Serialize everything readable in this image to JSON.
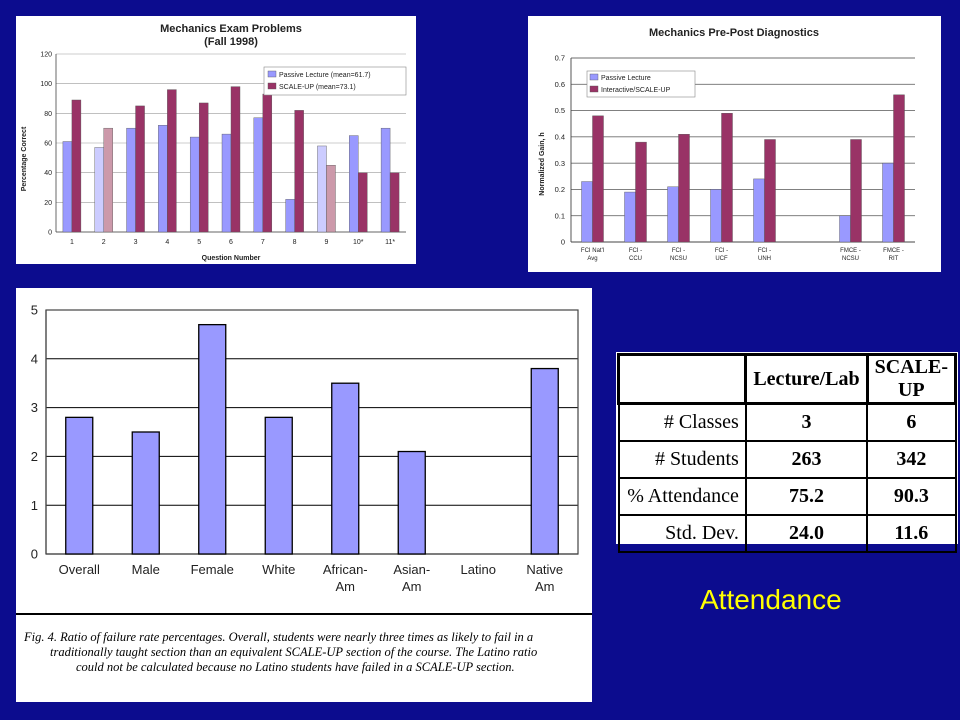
{
  "chart_data": [
    {
      "type": "bar",
      "title": "Mechanics Exam Problems",
      "subtitle": "(Fall 1998)",
      "xlabel": "Question Number",
      "ylabel": "Percentage Correct",
      "ylim": [
        0,
        120
      ],
      "yticks": [
        0,
        20,
        40,
        60,
        80,
        100,
        120
      ],
      "grid": true,
      "legend_position": "top-right",
      "categories": [
        "1",
        "2",
        "3",
        "4",
        "5",
        "6",
        "7",
        "8",
        "9",
        "10*",
        "11*"
      ],
      "series": [
        {
          "name": "Passive Lecture (mean=61.7)",
          "color": "#9999ff",
          "values": [
            61,
            57,
            70,
            72,
            64,
            66,
            77,
            22,
            58,
            65,
            70
          ]
        },
        {
          "name": "SCALE-UP (mean=73.1)",
          "color": "#993366",
          "values": [
            89,
            70,
            85,
            96,
            87,
            98,
            93,
            82,
            45,
            40,
            40
          ]
        }
      ]
    },
    {
      "type": "bar",
      "title": "Mechanics Pre-Post Diagnostics",
      "ylabel": "Normalized Gain, h",
      "ylim": [
        0,
        0.7
      ],
      "yticks": [
        "0",
        "0.1",
        "0.2",
        "0.3",
        "0.4",
        "0.5",
        "0.6",
        "0.7"
      ],
      "grid": true,
      "legend_position": "top-left",
      "categories": [
        "FCI Nat'l Avg",
        "FCI - CCU",
        "FCI - NCSU",
        "FCI - UCF",
        "FCI - UNH",
        "",
        "FMCE - NCSU",
        "FMCE - RIT"
      ],
      "series": [
        {
          "name": "Passive Lecture",
          "color": "#9999ff",
          "values": [
            0.23,
            0.19,
            0.21,
            0.2,
            0.24,
            null,
            0.1,
            0.3
          ]
        },
        {
          "name": "Interactive/SCALE-UP",
          "color": "#993366",
          "values": [
            0.48,
            0.38,
            0.41,
            0.49,
            0.39,
            null,
            0.39,
            0.56
          ]
        }
      ]
    },
    {
      "type": "bar",
      "title": "",
      "ylim": [
        0,
        5
      ],
      "yticks": [
        0,
        1,
        2,
        3,
        4,
        5
      ],
      "grid": true,
      "categories": [
        "Overall",
        "Male",
        "Female",
        "White",
        "African-Am",
        "Asian-Am",
        "Latino",
        "Native Am"
      ],
      "series": [
        {
          "color": "#9999ff",
          "values": [
            2.8,
            2.5,
            4.7,
            2.8,
            3.5,
            2.1,
            null,
            3.8
          ]
        }
      ]
    },
    {
      "type": "table",
      "columns": [
        "",
        "Lecture/Lab",
        "SCALE-UP"
      ],
      "rows": [
        [
          "# Classes",
          "3",
          "6"
        ],
        [
          "# Students",
          "263",
          "342"
        ],
        [
          "% Attendance",
          "75.2",
          "90.3"
        ],
        [
          "Std. Dev.",
          "24.0",
          "11.6"
        ]
      ]
    }
  ],
  "caption": {
    "line1": "Fig. 4. Ratio of failure rate percentages. Overall, students were nearly three times as likely to fail in a",
    "line2": "traditionally taught section than an equivalent SCALE-UP section of the course. The Latino ratio",
    "line3": "could not be calculated because no Latino students have failed in a SCALE-UP section."
  },
  "slide_label": "Attendance"
}
